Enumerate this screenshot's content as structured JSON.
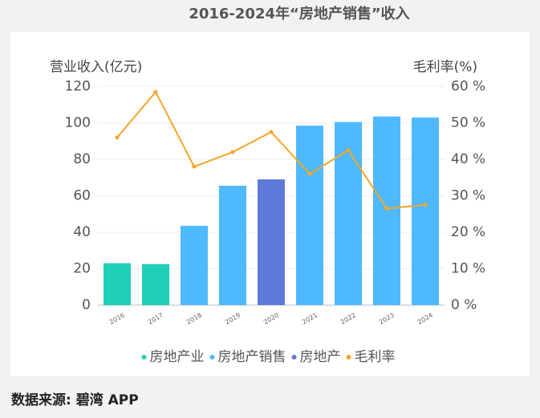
{
  "chart_data": {
    "type": "bar",
    "title": "2016-2024年“房地产销售”收入",
    "y_label": "营业收入(亿元)",
    "y2_label": "毛利率(%)",
    "source": "数据来源: 碧湾 APP",
    "categories": [
      "2016",
      "2017",
      "2018",
      "2019",
      "2020",
      "2021",
      "2022",
      "2023",
      "2024"
    ],
    "series": [
      {
        "name": "房地产业",
        "type": "bar",
        "color": "#1fcfb8",
        "values": [
          23,
          22.5,
          null,
          null,
          null,
          null,
          null,
          null,
          null
        ]
      },
      {
        "name": "房地产销售",
        "type": "bar",
        "color": "#4fb9fd",
        "values": [
          null,
          null,
          43.5,
          65.5,
          null,
          98.5,
          100.5,
          103.5,
          103
        ]
      },
      {
        "name": "房地产",
        "type": "bar",
        "color": "#5e7ad8",
        "values": [
          null,
          null,
          null,
          null,
          69,
          null,
          null,
          null,
          null
        ]
      },
      {
        "name": "毛利率",
        "type": "line",
        "axis": "y2",
        "color": "#f5a52a",
        "values": [
          46,
          58.5,
          38,
          42,
          47.5,
          36,
          42.5,
          26.5,
          27.5
        ]
      }
    ],
    "ylim": [
      0,
      120
    ],
    "yticks": [
      0,
      20,
      40,
      60,
      80,
      100,
      120
    ],
    "y2lim": [
      0,
      60
    ],
    "y2ticks": [
      {
        "value": 0,
        "label": "0 %"
      },
      {
        "value": 10,
        "label": "10 %"
      },
      {
        "value": 20,
        "label": "20 %"
      },
      {
        "value": 30,
        "label": "30 %"
      },
      {
        "value": 40,
        "label": "40 %"
      },
      {
        "value": 50,
        "label": "50 %"
      },
      {
        "value": 60,
        "label": "60 %"
      }
    ],
    "grid": true
  }
}
